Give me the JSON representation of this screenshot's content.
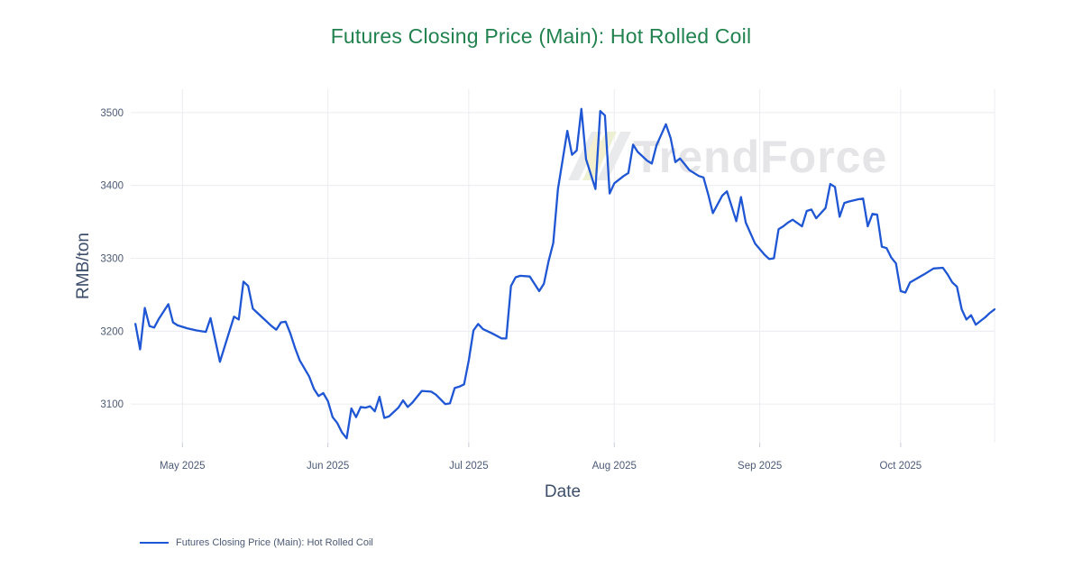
{
  "watermark": {
    "text": "TrendForce"
  },
  "colors": {
    "background": "#ffffff",
    "title_green": "#21824f",
    "axis_title": "#3d4e6b",
    "tick_label": "#4c5a76",
    "gridline": "#ececf1",
    "tick_mark": "#c7ccd6",
    "line_blue": "#1f56d4",
    "watermark_gray": "#e5e5e8"
  },
  "chart_data": {
    "type": "line",
    "title": "Futures Closing Price (Main): Hot Rolled Coil",
    "xlabel": "Date",
    "ylabel": "RMB/ton",
    "grid": true,
    "legend_position": "bottom-left",
    "x_domain": [
      "2025-04-20",
      "2025-10-21"
    ],
    "ylim": [
      3047,
      3532
    ],
    "y_ticks": [
      3100,
      3200,
      3300,
      3400,
      3500
    ],
    "x_ticks": [
      {
        "date": "2025-05-01",
        "label": "May 2025"
      },
      {
        "date": "2025-06-01",
        "label": "Jun 2025"
      },
      {
        "date": "2025-07-01",
        "label": "Jul 2025"
      },
      {
        "date": "2025-08-01",
        "label": "Aug 2025"
      },
      {
        "date": "2025-09-01",
        "label": "Sep 2025"
      },
      {
        "date": "2025-10-01",
        "label": "Oct 2025"
      }
    ],
    "series": [
      {
        "name": "Futures Closing Price (Main): Hot Rolled Coil",
        "color": "#1f56d4",
        "points": [
          [
            "2025-04-21",
            3210
          ],
          [
            "2025-04-22",
            3175
          ],
          [
            "2025-04-23",
            3232
          ],
          [
            "2025-04-24",
            3207
          ],
          [
            "2025-04-25",
            3205
          ],
          [
            "2025-04-26",
            3217
          ],
          [
            "2025-04-28",
            3237
          ],
          [
            "2025-04-29",
            3212
          ],
          [
            "2025-04-30",
            3208
          ],
          [
            "2025-05-02",
            3204
          ],
          [
            "2025-05-04",
            3201
          ],
          [
            "2025-05-06",
            3199
          ],
          [
            "2025-05-07",
            3218
          ],
          [
            "2025-05-09",
            3158
          ],
          [
            "2025-05-12",
            3220
          ],
          [
            "2025-05-13",
            3216
          ],
          [
            "2025-05-14",
            3268
          ],
          [
            "2025-05-15",
            3262
          ],
          [
            "2025-05-16",
            3231
          ],
          [
            "2025-05-17",
            3225
          ],
          [
            "2025-05-18",
            3219
          ],
          [
            "2025-05-20",
            3207
          ],
          [
            "2025-05-21",
            3202
          ],
          [
            "2025-05-22",
            3212
          ],
          [
            "2025-05-23",
            3213
          ],
          [
            "2025-05-24",
            3197
          ],
          [
            "2025-05-25",
            3177
          ],
          [
            "2025-05-26",
            3160
          ],
          [
            "2025-05-28",
            3138
          ],
          [
            "2025-05-29",
            3121
          ],
          [
            "2025-05-30",
            3111
          ],
          [
            "2025-05-31",
            3115
          ],
          [
            "2025-06-01",
            3104
          ],
          [
            "2025-06-02",
            3082
          ],
          [
            "2025-06-03",
            3074
          ],
          [
            "2025-06-04",
            3061
          ],
          [
            "2025-06-05",
            3053
          ],
          [
            "2025-06-06",
            3094
          ],
          [
            "2025-06-07",
            3082
          ],
          [
            "2025-06-08",
            3096
          ],
          [
            "2025-06-09",
            3095
          ],
          [
            "2025-06-10",
            3097
          ],
          [
            "2025-06-11",
            3090
          ],
          [
            "2025-06-12",
            3110
          ],
          [
            "2025-06-13",
            3081
          ],
          [
            "2025-06-14",
            3083
          ],
          [
            "2025-06-16",
            3095
          ],
          [
            "2025-06-17",
            3105
          ],
          [
            "2025-06-18",
            3096
          ],
          [
            "2025-06-19",
            3102
          ],
          [
            "2025-06-21",
            3118
          ],
          [
            "2025-06-23",
            3117
          ],
          [
            "2025-06-24",
            3113
          ],
          [
            "2025-06-26",
            3100
          ],
          [
            "2025-06-27",
            3101
          ],
          [
            "2025-06-28",
            3122
          ],
          [
            "2025-06-29",
            3124
          ],
          [
            "2025-06-30",
            3127
          ],
          [
            "2025-07-01",
            3160
          ],
          [
            "2025-07-02",
            3201
          ],
          [
            "2025-07-03",
            3210
          ],
          [
            "2025-07-04",
            3203
          ],
          [
            "2025-07-06",
            3197
          ],
          [
            "2025-07-08",
            3190
          ],
          [
            "2025-07-09",
            3190
          ],
          [
            "2025-07-10",
            3262
          ],
          [
            "2025-07-11",
            3274
          ],
          [
            "2025-07-12",
            3276
          ],
          [
            "2025-07-14",
            3275
          ],
          [
            "2025-07-16",
            3255
          ],
          [
            "2025-07-17",
            3265
          ],
          [
            "2025-07-18",
            3296
          ],
          [
            "2025-07-19",
            3321
          ],
          [
            "2025-07-20",
            3395
          ],
          [
            "2025-07-22",
            3475
          ],
          [
            "2025-07-23",
            3442
          ],
          [
            "2025-07-24",
            3448
          ],
          [
            "2025-07-25",
            3505
          ],
          [
            "2025-07-26",
            3436
          ],
          [
            "2025-07-28",
            3395
          ],
          [
            "2025-07-29",
            3502
          ],
          [
            "2025-07-30",
            3496
          ],
          [
            "2025-07-31",
            3389
          ],
          [
            "2025-08-01",
            3403
          ],
          [
            "2025-08-03",
            3413
          ],
          [
            "2025-08-04",
            3417
          ],
          [
            "2025-08-05",
            3456
          ],
          [
            "2025-08-06",
            3446
          ],
          [
            "2025-08-08",
            3434
          ],
          [
            "2025-08-09",
            3430
          ],
          [
            "2025-08-10",
            3455
          ],
          [
            "2025-08-12",
            3484
          ],
          [
            "2025-08-13",
            3465
          ],
          [
            "2025-08-14",
            3432
          ],
          [
            "2025-08-15",
            3437
          ],
          [
            "2025-08-17",
            3421
          ],
          [
            "2025-08-19",
            3413
          ],
          [
            "2025-08-20",
            3411
          ],
          [
            "2025-08-21",
            3388
          ],
          [
            "2025-08-22",
            3362
          ],
          [
            "2025-08-24",
            3386
          ],
          [
            "2025-08-25",
            3392
          ],
          [
            "2025-08-27",
            3351
          ],
          [
            "2025-08-28",
            3384
          ],
          [
            "2025-08-29",
            3349
          ],
          [
            "2025-08-31",
            3320
          ],
          [
            "2025-09-02",
            3305
          ],
          [
            "2025-09-03",
            3299
          ],
          [
            "2025-09-04",
            3300
          ],
          [
            "2025-09-05",
            3340
          ],
          [
            "2025-09-06",
            3344
          ],
          [
            "2025-09-07",
            3349
          ],
          [
            "2025-09-08",
            3353
          ],
          [
            "2025-09-10",
            3344
          ],
          [
            "2025-09-11",
            3365
          ],
          [
            "2025-09-12",
            3367
          ],
          [
            "2025-09-13",
            3355
          ],
          [
            "2025-09-15",
            3369
          ],
          [
            "2025-09-16",
            3402
          ],
          [
            "2025-09-17",
            3398
          ],
          [
            "2025-09-18",
            3357
          ],
          [
            "2025-09-19",
            3376
          ],
          [
            "2025-09-20",
            3378
          ],
          [
            "2025-09-22",
            3381
          ],
          [
            "2025-09-23",
            3382
          ],
          [
            "2025-09-24",
            3344
          ],
          [
            "2025-09-25",
            3361
          ],
          [
            "2025-09-26",
            3360
          ],
          [
            "2025-09-27",
            3316
          ],
          [
            "2025-09-28",
            3314
          ],
          [
            "2025-09-29",
            3301
          ],
          [
            "2025-09-30",
            3293
          ],
          [
            "2025-10-01",
            3255
          ],
          [
            "2025-10-02",
            3253
          ],
          [
            "2025-10-03",
            3267
          ],
          [
            "2025-10-06",
            3278
          ],
          [
            "2025-10-08",
            3286
          ],
          [
            "2025-10-10",
            3287
          ],
          [
            "2025-10-11",
            3278
          ],
          [
            "2025-10-12",
            3267
          ],
          [
            "2025-10-13",
            3261
          ],
          [
            "2025-10-14",
            3230
          ],
          [
            "2025-10-15",
            3216
          ],
          [
            "2025-10-16",
            3222
          ],
          [
            "2025-10-17",
            3209
          ],
          [
            "2025-10-18",
            3214
          ],
          [
            "2025-10-19",
            3219
          ],
          [
            "2025-10-20",
            3225
          ],
          [
            "2025-10-21",
            3230
          ]
        ]
      }
    ]
  }
}
